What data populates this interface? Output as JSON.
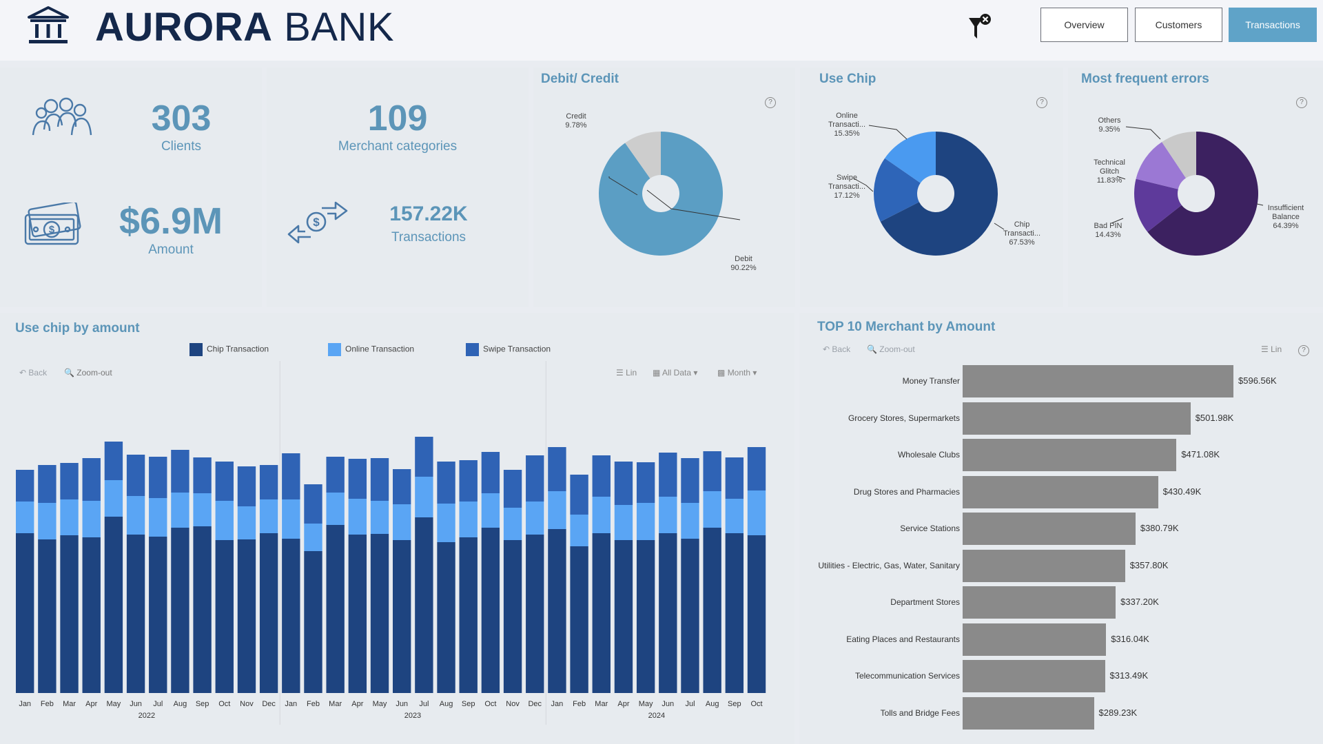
{
  "header": {
    "brand_bold": "AURORA",
    "brand_light": "BANK",
    "nav": [
      "Overview",
      "Customers",
      "Transactions"
    ],
    "active_nav": "Transactions",
    "icons": {
      "logo": "bank-building-icon",
      "filter": "filter-clear-icon"
    }
  },
  "kpis": {
    "clients_value": "303",
    "clients_label": "Clients",
    "amount_value": "$6.9M",
    "amount_label": "Amount",
    "merchant_value": "109",
    "merchant_label": "Merchant categories",
    "transactions_value": "157.22K",
    "transactions_label": "Transactions"
  },
  "debit_credit": {
    "title": "Debit/ Credit",
    "slices": [
      {
        "name": "Debit",
        "label": "Debit",
        "pct": "90.22%",
        "value": 90.22,
        "color": "#5b9ec4"
      },
      {
        "name": "Credit",
        "label": "Credit",
        "pct": "9.78%",
        "value": 9.78,
        "color": "#cdcdcd"
      }
    ]
  },
  "use_chip": {
    "title": "Use Chip",
    "slices": [
      {
        "name": "Chip Transaction",
        "label1": "Chip",
        "label2": "Transacti...",
        "pct": "67.53%",
        "value": 67.53,
        "color": "#1e4480"
      },
      {
        "name": "Swipe Transaction",
        "label1": "Swipe",
        "label2": "Transacti...",
        "pct": "17.12%",
        "value": 17.12,
        "color": "#2e65b8"
      },
      {
        "name": "Online Transaction",
        "label1": "Online",
        "label2": "Transacti...",
        "pct": "15.35%",
        "value": 15.35,
        "color": "#4a9af0"
      }
    ]
  },
  "errors": {
    "title": "Most frequent errors",
    "slices": [
      {
        "name": "Insufficient Balance",
        "label1": "Insufficient",
        "label2": "Balance",
        "pct": "64.39%",
        "value": 64.39,
        "color": "#3c2160"
      },
      {
        "name": "Bad PIN",
        "label1": "Bad PIN",
        "label2": "",
        "pct": "14.43%",
        "value": 14.43,
        "color": "#5e3a9b"
      },
      {
        "name": "Technical Glitch",
        "label1": "Technical",
        "label2": "Glitch",
        "pct": "11.83%",
        "value": 11.83,
        "color": "#9b78d4"
      },
      {
        "name": "Others",
        "label1": "Others",
        "label2": "",
        "pct": "9.35%",
        "value": 9.35,
        "color": "#c9c9c9"
      }
    ]
  },
  "toolbar": {
    "back": "Back",
    "zoom_out": "Zoom-out",
    "lin": "Lin",
    "all_data": "All Data",
    "month": "Month"
  },
  "chart_data": [
    {
      "type": "bar",
      "stacked": true,
      "title": "Use chip by amount",
      "legend_placement": "top",
      "categories": [
        "Jan",
        "Feb",
        "Mar",
        "Apr",
        "May",
        "Jun",
        "Jul",
        "Aug",
        "Sep",
        "Oct",
        "Nov",
        "Dec",
        "Jan",
        "Feb",
        "Mar",
        "Apr",
        "May",
        "Jun",
        "Jul",
        "Aug",
        "Sep",
        "Oct",
        "Nov",
        "Dec",
        "Jan",
        "Feb",
        "Mar",
        "Apr",
        "May",
        "Jun",
        "Jul",
        "Aug",
        "Sep",
        "Oct"
      ],
      "year_labels": [
        {
          "label": "2022",
          "start": 0,
          "end": 11
        },
        {
          "label": "2023",
          "start": 12,
          "end": 23
        },
        {
          "label": "2024",
          "start": 24,
          "end": 33
        }
      ],
      "series": [
        {
          "name": "Chip Transaction",
          "color": "#1e4480",
          "values": [
            232,
            223,
            229,
            226,
            256,
            230,
            227,
            240,
            242,
            222,
            223,
            232,
            224,
            206,
            244,
            230,
            231,
            222,
            255,
            219,
            226,
            240,
            222,
            230,
            238,
            213,
            232,
            222,
            222,
            232,
            224,
            240,
            232,
            229
          ]
        },
        {
          "name": "Online Transaction",
          "color": "#5aa5f4",
          "values": [
            46,
            53,
            52,
            53,
            53,
            56,
            56,
            51,
            48,
            57,
            48,
            49,
            57,
            40,
            47,
            52,
            48,
            52,
            59,
            56,
            52,
            50,
            47,
            48,
            55,
            46,
            53,
            51,
            54,
            53,
            52,
            53,
            50,
            65
          ]
        },
        {
          "name": "Swipe Transaction",
          "color": "#2f63b5",
          "values": [
            46,
            55,
            53,
            62,
            56,
            60,
            60,
            62,
            52,
            57,
            58,
            50,
            67,
            57,
            52,
            58,
            62,
            51,
            58,
            61,
            60,
            60,
            55,
            67,
            64,
            58,
            60,
            63,
            59,
            64,
            65,
            58,
            60,
            63
          ]
        }
      ],
      "ylim": [
        0,
        440
      ],
      "grid": false
    },
    {
      "type": "bar",
      "orientation": "horizontal",
      "title": "TOP 10 Merchant by Amount",
      "categories": [
        "Money Transfer",
        "Grocery Stores, Supermarkets",
        "Wholesale Clubs",
        "Drug Stores and Pharmacies",
        "Service Stations",
        "Utilities - Electric, Gas, Water, Sanitary",
        "Department Stores",
        "Eating Places and Restaurants",
        "Telecommunication Services",
        "Tolls and Bridge Fees"
      ],
      "values": [
        596.56,
        501.98,
        471.08,
        430.49,
        380.79,
        357.8,
        337.2,
        316.04,
        313.49,
        289.23
      ],
      "value_labels": [
        "$596.56K",
        "$501.98K",
        "$471.08K",
        "$430.49K",
        "$380.79K",
        "$357.80K",
        "$337.20K",
        "$316.04K",
        "$313.49K",
        "$289.23K"
      ],
      "xlim": [
        0,
        596.56
      ],
      "color": "#8a8a8a"
    }
  ]
}
